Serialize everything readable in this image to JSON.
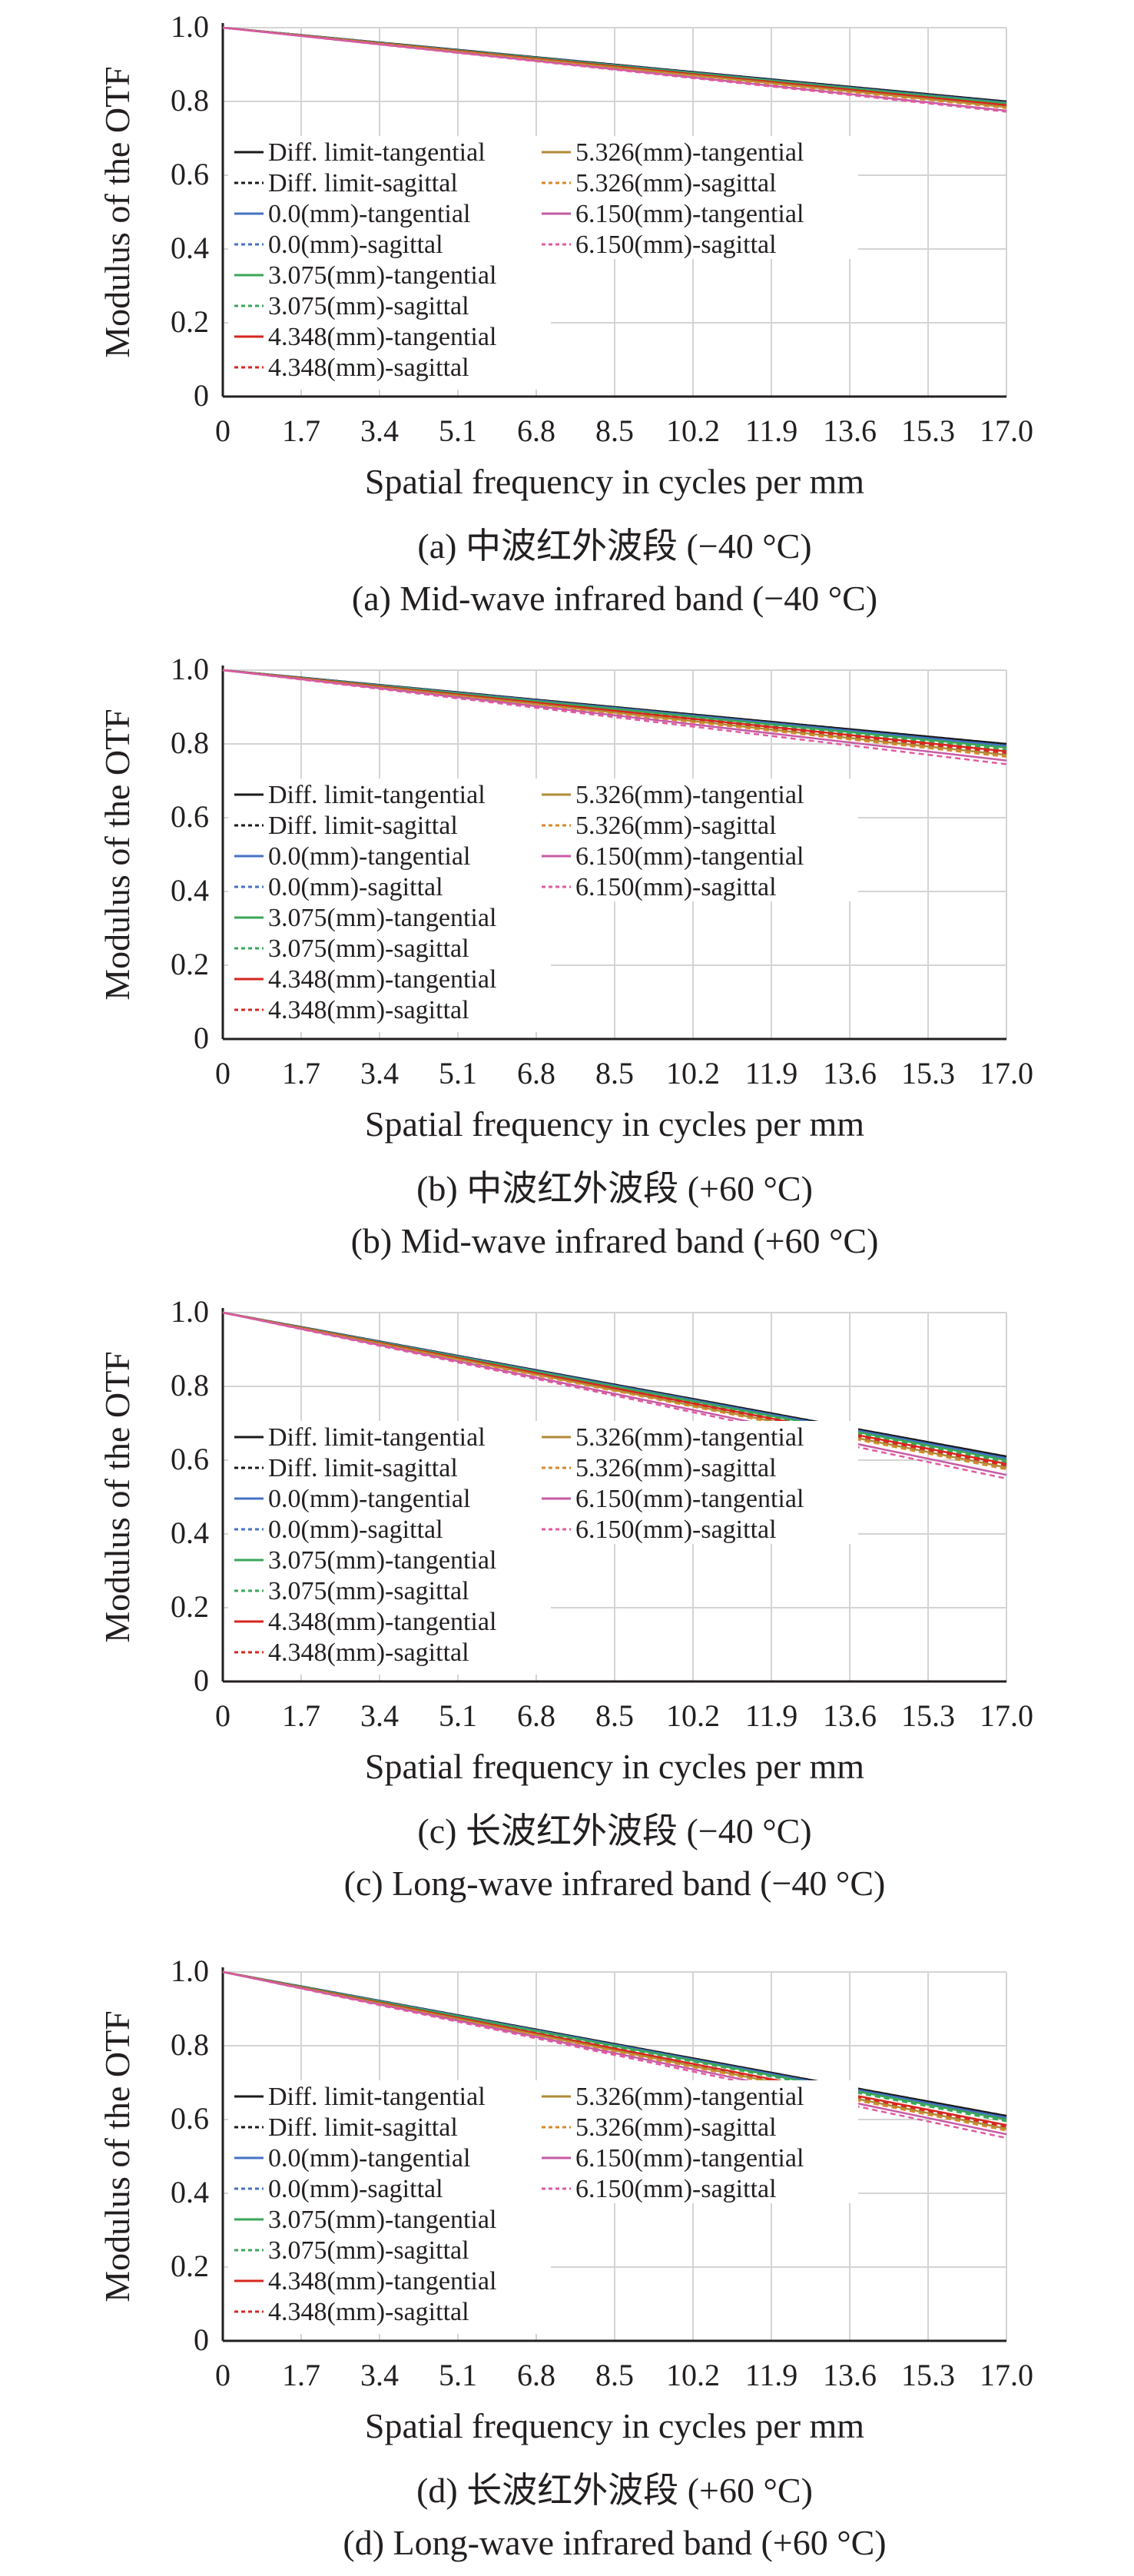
{
  "chart_data": [
    {
      "type": "line",
      "title": "",
      "caption_cn": "(a) 中波红外波段 (−40 °C)",
      "caption_en": "(a) Mid-wave infrared band (−40 °C)",
      "xlabel": "Spatial frequency in cycles per mm",
      "ylabel": "Modulus of the OTF",
      "xlim": [
        0,
        17.0
      ],
      "ylim": [
        0,
        1.0
      ],
      "x_ticks": [
        "0",
        "1.7",
        "3.4",
        "5.1",
        "6.8",
        "8.5",
        "10.2",
        "11.9",
        "13.6",
        "15.3",
        "17.0"
      ],
      "y_ticks": [
        "0",
        "0.2",
        "0.4",
        "0.6",
        "0.8",
        "1.0"
      ],
      "grid": true,
      "legend_placement": "left, two columns",
      "series": [
        {
          "name": "Diff. limit-tangential",
          "color": "#1a1a1a",
          "dash": "solid",
          "x": [
            0,
            17.0
          ],
          "y": [
            1.0,
            0.8
          ]
        },
        {
          "name": "Diff. limit-sagittal",
          "color": "#1a1a1a",
          "dash": "dashed",
          "x": [
            0,
            17.0
          ],
          "y": [
            1.0,
            0.8
          ]
        },
        {
          "name": "0.0(mm)-tangential",
          "color": "#4472c4",
          "dash": "solid",
          "x": [
            0,
            17.0
          ],
          "y": [
            1.0,
            0.797
          ]
        },
        {
          "name": "0.0(mm)-sagittal",
          "color": "#4472c4",
          "dash": "dashed",
          "x": [
            0,
            17.0
          ],
          "y": [
            1.0,
            0.797
          ]
        },
        {
          "name": "3.075(mm)-tangential",
          "color": "#3aa657",
          "dash": "solid",
          "x": [
            0,
            17.0
          ],
          "y": [
            1.0,
            0.795
          ]
        },
        {
          "name": "3.075(mm)-sagittal",
          "color": "#3aa657",
          "dash": "dashed",
          "x": [
            0,
            17.0
          ],
          "y": [
            1.0,
            0.792
          ]
        },
        {
          "name": "4.348(mm)-tangential",
          "color": "#d7261e",
          "dash": "solid",
          "x": [
            0,
            17.0
          ],
          "y": [
            1.0,
            0.79
          ]
        },
        {
          "name": "4.348(mm)-sagittal",
          "color": "#d7261e",
          "dash": "dashed",
          "x": [
            0,
            17.0
          ],
          "y": [
            1.0,
            0.787
          ]
        },
        {
          "name": "5.326(mm)-tangential",
          "color": "#b08a38",
          "dash": "solid",
          "x": [
            0,
            17.0
          ],
          "y": [
            1.0,
            0.785
          ]
        },
        {
          "name": "5.326(mm)-sagittal",
          "color": "#d58a2a",
          "dash": "dashed",
          "x": [
            0,
            17.0
          ],
          "y": [
            1.0,
            0.782
          ]
        },
        {
          "name": "6.150(mm)-tangential",
          "color": "#c75aa5",
          "dash": "solid",
          "x": [
            0,
            17.0
          ],
          "y": [
            1.0,
            0.775
          ]
        },
        {
          "name": "6.150(mm)-sagittal",
          "color": "#e05aa0",
          "dash": "dashed",
          "x": [
            0,
            17.0
          ],
          "y": [
            1.0,
            0.772
          ]
        }
      ]
    },
    {
      "type": "line",
      "title": "",
      "caption_cn": "(b) 中波红外波段 (+60 °C)",
      "caption_en": "(b) Mid-wave infrared band (+60 °C)",
      "xlabel": "Spatial frequency in cycles per mm",
      "ylabel": "Modulus of the OTF",
      "xlim": [
        0,
        17.0
      ],
      "ylim": [
        0,
        1.0
      ],
      "x_ticks": [
        "0",
        "1.7",
        "3.4",
        "5.1",
        "6.8",
        "8.5",
        "10.2",
        "11.9",
        "13.6",
        "15.3",
        "17.0"
      ],
      "y_ticks": [
        "0",
        "0.2",
        "0.4",
        "0.6",
        "0.8",
        "1.0"
      ],
      "grid": true,
      "legend_placement": "left, two columns",
      "series": [
        {
          "name": "Diff. limit-tangential",
          "color": "#1a1a1a",
          "dash": "solid",
          "x": [
            0,
            17.0
          ],
          "y": [
            1.0,
            0.8
          ]
        },
        {
          "name": "Diff. limit-sagittal",
          "color": "#1a1a1a",
          "dash": "dashed",
          "x": [
            0,
            17.0
          ],
          "y": [
            1.0,
            0.8
          ]
        },
        {
          "name": "0.0(mm)-tangential",
          "color": "#4472c4",
          "dash": "solid",
          "x": [
            0,
            17.0
          ],
          "y": [
            1.0,
            0.795
          ]
        },
        {
          "name": "0.0(mm)-sagittal",
          "color": "#4472c4",
          "dash": "dashed",
          "x": [
            0,
            17.0
          ],
          "y": [
            1.0,
            0.795
          ]
        },
        {
          "name": "3.075(mm)-tangential",
          "color": "#3aa657",
          "dash": "solid",
          "x": [
            0,
            17.0
          ],
          "y": [
            1.0,
            0.79
          ]
        },
        {
          "name": "3.075(mm)-sagittal",
          "color": "#3aa657",
          "dash": "dashed",
          "x": [
            0,
            17.0
          ],
          "y": [
            1.0,
            0.785
          ]
        },
        {
          "name": "4.348(mm)-tangential",
          "color": "#d7261e",
          "dash": "solid",
          "x": [
            0,
            17.0
          ],
          "y": [
            1.0,
            0.78
          ]
        },
        {
          "name": "4.348(mm)-sagittal",
          "color": "#d7261e",
          "dash": "dashed",
          "x": [
            0,
            17.0
          ],
          "y": [
            1.0,
            0.775
          ]
        },
        {
          "name": "5.326(mm)-tangential",
          "color": "#b08a38",
          "dash": "solid",
          "x": [
            0,
            17.0
          ],
          "y": [
            1.0,
            0.77
          ]
        },
        {
          "name": "5.326(mm)-sagittal",
          "color": "#d58a2a",
          "dash": "dashed",
          "x": [
            0,
            17.0
          ],
          "y": [
            1.0,
            0.765
          ]
        },
        {
          "name": "6.150(mm)-tangential",
          "color": "#c75aa5",
          "dash": "solid",
          "x": [
            0,
            17.0
          ],
          "y": [
            1.0,
            0.755
          ]
        },
        {
          "name": "6.150(mm)-sagittal",
          "color": "#e05aa0",
          "dash": "dashed",
          "x": [
            0,
            17.0
          ],
          "y": [
            1.0,
            0.745
          ]
        }
      ]
    },
    {
      "type": "line",
      "title": "",
      "caption_cn": "(c) 长波红外波段 (−40 °C)",
      "caption_en": "(c) Long-wave infrared band (−40 °C)",
      "xlabel": "Spatial frequency in cycles per mm",
      "ylabel": "Modulus of the OTF",
      "xlim": [
        0,
        17.0
      ],
      "ylim": [
        0,
        1.0
      ],
      "x_ticks": [
        "0",
        "1.7",
        "3.4",
        "5.1",
        "6.8",
        "8.5",
        "10.2",
        "11.9",
        "13.6",
        "15.3",
        "17.0"
      ],
      "y_ticks": [
        "0",
        "0.2",
        "0.4",
        "0.6",
        "0.8",
        "1.0"
      ],
      "grid": true,
      "legend_placement": "left, two columns",
      "series": [
        {
          "name": "Diff. limit-tangential",
          "color": "#1a1a1a",
          "dash": "solid",
          "x": [
            0,
            17.0
          ],
          "y": [
            1.0,
            0.61
          ]
        },
        {
          "name": "Diff. limit-sagittal",
          "color": "#1a1a1a",
          "dash": "dashed",
          "x": [
            0,
            17.0
          ],
          "y": [
            1.0,
            0.61
          ]
        },
        {
          "name": "0.0(mm)-tangential",
          "color": "#4472c4",
          "dash": "solid",
          "x": [
            0,
            17.0
          ],
          "y": [
            1.0,
            0.605
          ]
        },
        {
          "name": "0.0(mm)-sagittal",
          "color": "#4472c4",
          "dash": "dashed",
          "x": [
            0,
            17.0
          ],
          "y": [
            1.0,
            0.605
          ]
        },
        {
          "name": "3.075(mm)-tangential",
          "color": "#3aa657",
          "dash": "solid",
          "x": [
            0,
            17.0
          ],
          "y": [
            1.0,
            0.6
          ]
        },
        {
          "name": "3.075(mm)-sagittal",
          "color": "#3aa657",
          "dash": "dashed",
          "x": [
            0,
            17.0
          ],
          "y": [
            1.0,
            0.595
          ]
        },
        {
          "name": "4.348(mm)-tangential",
          "color": "#d7261e",
          "dash": "solid",
          "x": [
            0,
            17.0
          ],
          "y": [
            1.0,
            0.59
          ]
        },
        {
          "name": "4.348(mm)-sagittal",
          "color": "#d7261e",
          "dash": "dashed",
          "x": [
            0,
            17.0
          ],
          "y": [
            1.0,
            0.585
          ]
        },
        {
          "name": "5.326(mm)-tangential",
          "color": "#b08a38",
          "dash": "solid",
          "x": [
            0,
            17.0
          ],
          "y": [
            1.0,
            0.58
          ]
        },
        {
          "name": "5.326(mm)-sagittal",
          "color": "#d58a2a",
          "dash": "dashed",
          "x": [
            0,
            17.0
          ],
          "y": [
            1.0,
            0.575
          ]
        },
        {
          "name": "6.150(mm)-tangential",
          "color": "#c75aa5",
          "dash": "solid",
          "x": [
            0,
            17.0
          ],
          "y": [
            1.0,
            0.56
          ]
        },
        {
          "name": "6.150(mm)-sagittal",
          "color": "#e05aa0",
          "dash": "dashed",
          "x": [
            0,
            17.0
          ],
          "y": [
            1.0,
            0.55
          ]
        }
      ]
    },
    {
      "type": "line",
      "title": "",
      "caption_cn": "(d) 长波红外波段 (+60 °C)",
      "caption_en": "(d) Long-wave infrared band (+60 °C)",
      "xlabel": "Spatial frequency in cycles per mm",
      "ylabel": "Modulus of the OTF",
      "xlim": [
        0,
        17.0
      ],
      "ylim": [
        0,
        1.0
      ],
      "x_ticks": [
        "0",
        "1.7",
        "3.4",
        "5.1",
        "6.8",
        "8.5",
        "10.2",
        "11.9",
        "13.6",
        "15.3",
        "17.0"
      ],
      "y_ticks": [
        "0",
        "0.2",
        "0.4",
        "0.6",
        "0.8",
        "1.0"
      ],
      "grid": true,
      "legend_placement": "left, two columns",
      "series": [
        {
          "name": "Diff. limit-tangential",
          "color": "#1a1a1a",
          "dash": "solid",
          "x": [
            0,
            17.0
          ],
          "y": [
            1.0,
            0.61
          ]
        },
        {
          "name": "Diff. limit-sagittal",
          "color": "#1a1a1a",
          "dash": "dashed",
          "x": [
            0,
            17.0
          ],
          "y": [
            1.0,
            0.61
          ]
        },
        {
          "name": "0.0(mm)-tangential",
          "color": "#4472c4",
          "dash": "solid",
          "x": [
            0,
            17.0
          ],
          "y": [
            1.0,
            0.605
          ]
        },
        {
          "name": "0.0(mm)-sagittal",
          "color": "#4472c4",
          "dash": "dashed",
          "x": [
            0,
            17.0
          ],
          "y": [
            1.0,
            0.605
          ]
        },
        {
          "name": "3.075(mm)-tangential",
          "color": "#3aa657",
          "dash": "solid",
          "x": [
            0,
            17.0
          ],
          "y": [
            1.0,
            0.6
          ]
        },
        {
          "name": "3.075(mm)-sagittal",
          "color": "#3aa657",
          "dash": "dashed",
          "x": [
            0,
            17.0
          ],
          "y": [
            1.0,
            0.595
          ]
        },
        {
          "name": "4.348(mm)-tangential",
          "color": "#d7261e",
          "dash": "solid",
          "x": [
            0,
            17.0
          ],
          "y": [
            1.0,
            0.585
          ]
        },
        {
          "name": "4.348(mm)-sagittal",
          "color": "#d7261e",
          "dash": "dashed",
          "x": [
            0,
            17.0
          ],
          "y": [
            1.0,
            0.58
          ]
        },
        {
          "name": "5.326(mm)-tangential",
          "color": "#b08a38",
          "dash": "solid",
          "x": [
            0,
            17.0
          ],
          "y": [
            1.0,
            0.575
          ]
        },
        {
          "name": "5.326(mm)-sagittal",
          "color": "#d58a2a",
          "dash": "dashed",
          "x": [
            0,
            17.0
          ],
          "y": [
            1.0,
            0.57
          ]
        },
        {
          "name": "6.150(mm)-tangential",
          "color": "#c75aa5",
          "dash": "solid",
          "x": [
            0,
            17.0
          ],
          "y": [
            1.0,
            0.56
          ]
        },
        {
          "name": "6.150(mm)-sagittal",
          "color": "#e05aa0",
          "dash": "dashed",
          "x": [
            0,
            17.0
          ],
          "y": [
            1.0,
            0.55
          ]
        }
      ]
    }
  ]
}
